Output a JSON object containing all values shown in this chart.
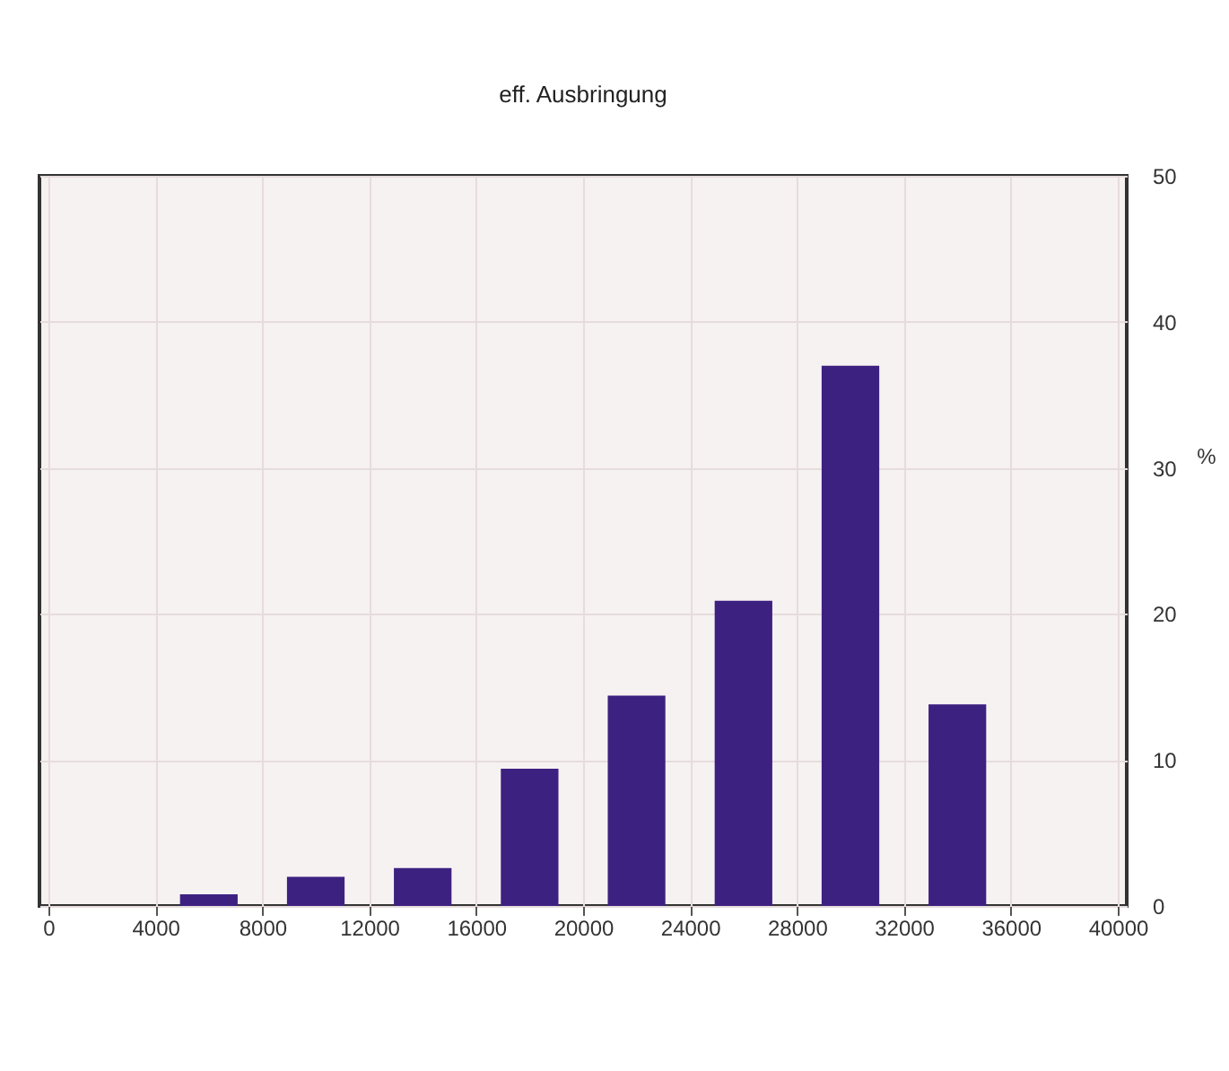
{
  "chart_data": {
    "type": "histogram",
    "title": "eff. Ausbringung",
    "ylabel": "%",
    "bins": [
      0,
      4000,
      8000,
      12000,
      16000,
      20000,
      24000,
      28000,
      32000,
      36000,
      40000
    ],
    "values": [
      0,
      0.8,
      2.0,
      2.6,
      9.4,
      14.4,
      20.9,
      37.0,
      13.8,
      0
    ],
    "color": "#3d2181",
    "xlim": [
      0,
      40000
    ],
    "xticks": [
      0,
      4000,
      8000,
      12000,
      16000,
      20000,
      24000,
      28000,
      32000,
      36000,
      40000
    ],
    "ylim": [
      0,
      50
    ],
    "yticks": [
      0,
      10,
      20,
      30,
      40,
      50
    ],
    "grid": true
  }
}
